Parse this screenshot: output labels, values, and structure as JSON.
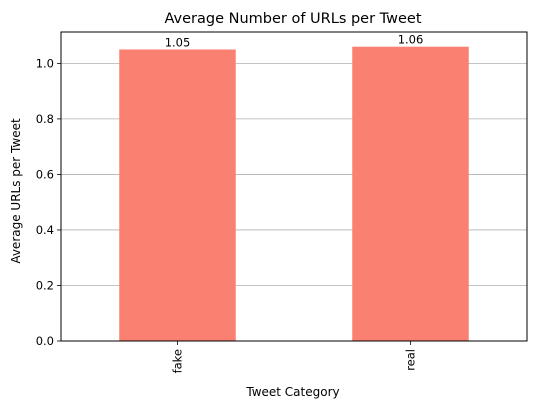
{
  "chart_data": {
    "type": "bar",
    "title": "Average Number of URLs per Tweet",
    "xlabel": "Tweet Category",
    "ylabel": "Average URLs per Tweet",
    "categories": [
      "fake",
      "real"
    ],
    "values": [
      1.05,
      1.06
    ],
    "data_labels": [
      "1.05",
      "1.06"
    ],
    "ylim": [
      0,
      1.113
    ],
    "yticks": [
      0,
      0.2,
      0.4,
      0.6,
      0.8,
      1.0
    ],
    "ytick_labels": [
      "0.0",
      "0.2",
      "0.4",
      "0.6",
      "0.8",
      "1.0"
    ],
    "grid": "y",
    "bar_color": "#fa8072",
    "grid_color": "#b0b0b0"
  }
}
